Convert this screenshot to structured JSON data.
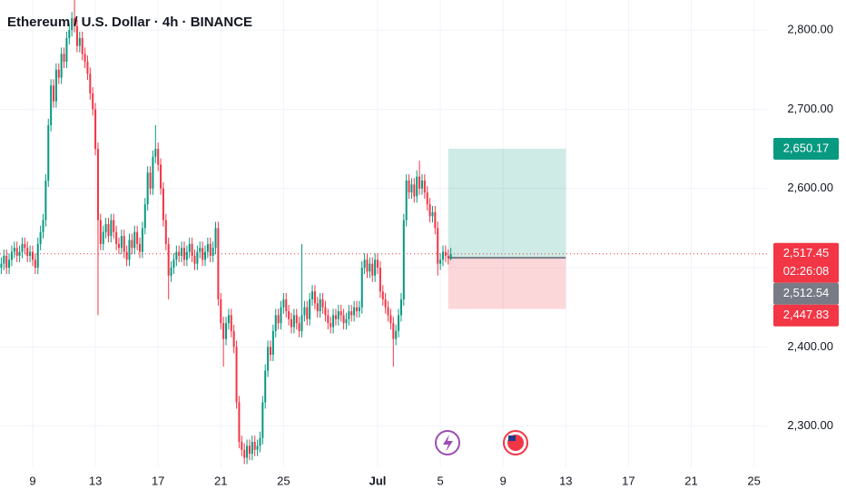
{
  "chart_data": {
    "type": "candlestick",
    "title": "Ethereum / U.S. Dollar · 4h · BINANCE",
    "up_color": "#089981",
    "down_color": "#f23645",
    "grid": true,
    "ylim": [
      2248,
      2838
    ],
    "yticks": [
      {
        "value": 2300,
        "label": "2,300.00"
      },
      {
        "value": 2400,
        "label": "2,400.00"
      },
      {
        "value": 2500,
        "label": "2,500.00"
      },
      {
        "value": 2600,
        "label": "2,600.00"
      },
      {
        "value": 2700,
        "label": "2,700.00"
      },
      {
        "value": 2800,
        "label": "2,800.00"
      }
    ],
    "xlim": [
      -0.5,
      293
    ],
    "xticks": [
      {
        "value": 12,
        "label": "9"
      },
      {
        "value": 36,
        "label": "13"
      },
      {
        "value": 60,
        "label": "17"
      },
      {
        "value": 84,
        "label": "21"
      },
      {
        "value": 108,
        "label": "25"
      },
      {
        "value": 144,
        "label": "Jul"
      },
      {
        "value": 168,
        "label": "5"
      },
      {
        "value": 192,
        "label": "9"
      },
      {
        "value": 216,
        "label": "13"
      },
      {
        "value": 240,
        "label": "17"
      },
      {
        "value": 264,
        "label": "21"
      },
      {
        "value": 288,
        "label": "25"
      }
    ],
    "candles": [
      [
        2500,
        2513,
        2492,
        2505
      ],
      [
        2505,
        2523,
        2497,
        2515
      ],
      [
        2515,
        2523,
        2492,
        2500
      ],
      [
        2500,
        2518,
        2492,
        2510
      ],
      [
        2510,
        2528,
        2502,
        2520
      ],
      [
        2520,
        2533,
        2512,
        2525
      ],
      [
        2525,
        2533,
        2507,
        2515
      ],
      [
        2515,
        2528,
        2507,
        2520
      ],
      [
        2520,
        2538,
        2512,
        2530
      ],
      [
        2530,
        2538,
        2517,
        2525
      ],
      [
        2525,
        2533,
        2507,
        2515
      ],
      [
        2515,
        2528,
        2507,
        2520
      ],
      [
        2520,
        2528,
        2502,
        2510
      ],
      [
        2510,
        2518,
        2492,
        2500
      ],
      [
        2500,
        2538,
        2492,
        2530
      ],
      [
        2530,
        2553,
        2522,
        2545
      ],
      [
        2545,
        2568,
        2537,
        2560
      ],
      [
        2560,
        2618,
        2552,
        2610
      ],
      [
        2610,
        2688,
        2602,
        2680
      ],
      [
        2680,
        2738,
        2672,
        2730
      ],
      [
        2730,
        2738,
        2702,
        2710
      ],
      [
        2710,
        2758,
        2702,
        2750
      ],
      [
        2750,
        2758,
        2732,
        2740
      ],
      [
        2740,
        2778,
        2732,
        2770
      ],
      [
        2770,
        2778,
        2752,
        2760
      ],
      [
        2760,
        2798,
        2752,
        2790
      ],
      [
        2790,
        2808,
        2782,
        2800
      ],
      [
        2800,
        2823,
        2792,
        2815
      ],
      [
        2815,
        2840,
        2797,
        2805
      ],
      [
        2805,
        2813,
        2772,
        2780
      ],
      [
        2780,
        2798,
        2772,
        2790
      ],
      [
        2790,
        2798,
        2762,
        2770
      ],
      [
        2770,
        2778,
        2752,
        2760
      ],
      [
        2760,
        2768,
        2737,
        2745
      ],
      [
        2745,
        2753,
        2712,
        2720
      ],
      [
        2720,
        2728,
        2692,
        2700
      ],
      [
        2700,
        2708,
        2642,
        2650
      ],
      [
        2650,
        2658,
        2440,
        2560
      ],
      [
        2560,
        2568,
        2522,
        2530
      ],
      [
        2530,
        2553,
        2522,
        2545
      ],
      [
        2545,
        2563,
        2537,
        2555
      ],
      [
        2555,
        2563,
        2532,
        2540
      ],
      [
        2540,
        2568,
        2532,
        2560
      ],
      [
        2560,
        2568,
        2537,
        2545
      ],
      [
        2545,
        2553,
        2522,
        2530
      ],
      [
        2530,
        2538,
        2517,
        2525
      ],
      [
        2525,
        2548,
        2517,
        2540
      ],
      [
        2540,
        2548,
        2512,
        2520
      ],
      [
        2520,
        2528,
        2502,
        2510
      ],
      [
        2510,
        2543,
        2502,
        2535
      ],
      [
        2535,
        2543,
        2517,
        2525
      ],
      [
        2525,
        2553,
        2517,
        2545
      ],
      [
        2545,
        2553,
        2522,
        2530
      ],
      [
        2530,
        2538,
        2512,
        2520
      ],
      [
        2520,
        2558,
        2512,
        2550
      ],
      [
        2550,
        2588,
        2542,
        2580
      ],
      [
        2580,
        2628,
        2572,
        2620
      ],
      [
        2620,
        2628,
        2592,
        2600
      ],
      [
        2600,
        2648,
        2592,
        2640
      ],
      [
        2640,
        2680,
        2632,
        2650
      ],
      [
        2650,
        2658,
        2622,
        2630
      ],
      [
        2630,
        2638,
        2592,
        2600
      ],
      [
        2600,
        2608,
        2552,
        2560
      ],
      [
        2560,
        2568,
        2522,
        2530
      ],
      [
        2530,
        2538,
        2460,
        2490
      ],
      [
        2490,
        2508,
        2482,
        2500
      ],
      [
        2500,
        2518,
        2492,
        2510
      ],
      [
        2510,
        2528,
        2502,
        2520
      ],
      [
        2520,
        2528,
        2507,
        2515
      ],
      [
        2515,
        2533,
        2507,
        2525
      ],
      [
        2525,
        2533,
        2502,
        2510
      ],
      [
        2510,
        2528,
        2502,
        2520
      ],
      [
        2520,
        2538,
        2512,
        2530
      ],
      [
        2530,
        2538,
        2507,
        2515
      ],
      [
        2515,
        2523,
        2497,
        2505
      ],
      [
        2505,
        2528,
        2497,
        2520
      ],
      [
        2520,
        2533,
        2512,
        2525
      ],
      [
        2525,
        2533,
        2502,
        2510
      ],
      [
        2510,
        2528,
        2502,
        2520
      ],
      [
        2520,
        2538,
        2512,
        2530
      ],
      [
        2530,
        2538,
        2507,
        2515
      ],
      [
        2515,
        2533,
        2507,
        2525
      ],
      [
        2525,
        2558,
        2517,
        2550
      ],
      [
        2550,
        2558,
        2452,
        2460
      ],
      [
        2460,
        2468,
        2422,
        2430
      ],
      [
        2430,
        2438,
        2375,
        2410
      ],
      [
        2410,
        2438,
        2402,
        2430
      ],
      [
        2430,
        2448,
        2422,
        2440
      ],
      [
        2440,
        2448,
        2412,
        2420
      ],
      [
        2420,
        2428,
        2392,
        2400
      ],
      [
        2400,
        2408,
        2322,
        2330
      ],
      [
        2330,
        2338,
        2272,
        2280
      ],
      [
        2280,
        2288,
        2262,
        2270
      ],
      [
        2270,
        2278,
        2252,
        2260
      ],
      [
        2260,
        2283,
        2252,
        2275
      ],
      [
        2275,
        2283,
        2257,
        2265
      ],
      [
        2265,
        2288,
        2257,
        2280
      ],
      [
        2280,
        2288,
        2262,
        2270
      ],
      [
        2270,
        2283,
        2262,
        2275
      ],
      [
        2275,
        2293,
        2267,
        2285
      ],
      [
        2285,
        2338,
        2277,
        2330
      ],
      [
        2330,
        2378,
        2322,
        2370
      ],
      [
        2370,
        2408,
        2362,
        2400
      ],
      [
        2400,
        2408,
        2382,
        2390
      ],
      [
        2390,
        2428,
        2382,
        2420
      ],
      [
        2420,
        2448,
        2412,
        2440
      ],
      [
        2440,
        2448,
        2422,
        2430
      ],
      [
        2430,
        2458,
        2422,
        2450
      ],
      [
        2450,
        2468,
        2442,
        2460
      ],
      [
        2460,
        2468,
        2437,
        2445
      ],
      [
        2445,
        2453,
        2427,
        2435
      ],
      [
        2435,
        2443,
        2417,
        2425
      ],
      [
        2425,
        2448,
        2417,
        2440
      ],
      [
        2440,
        2448,
        2422,
        2430
      ],
      [
        2430,
        2438,
        2412,
        2420
      ],
      [
        2420,
        2530,
        2412,
        2440
      ],
      [
        2440,
        2458,
        2432,
        2450
      ],
      [
        2450,
        2458,
        2427,
        2435
      ],
      [
        2435,
        2468,
        2427,
        2460
      ],
      [
        2460,
        2478,
        2452,
        2470
      ],
      [
        2470,
        2478,
        2447,
        2455
      ],
      [
        2455,
        2463,
        2437,
        2445
      ],
      [
        2445,
        2468,
        2437,
        2460
      ],
      [
        2460,
        2468,
        2442,
        2450
      ],
      [
        2450,
        2458,
        2432,
        2440
      ],
      [
        2440,
        2448,
        2422,
        2430
      ],
      [
        2430,
        2438,
        2417,
        2425
      ],
      [
        2425,
        2448,
        2417,
        2440
      ],
      [
        2440,
        2448,
        2427,
        2435
      ],
      [
        2435,
        2453,
        2427,
        2445
      ],
      [
        2445,
        2453,
        2432,
        2440
      ],
      [
        2440,
        2448,
        2422,
        2430
      ],
      [
        2430,
        2443,
        2422,
        2435
      ],
      [
        2435,
        2453,
        2427,
        2445
      ],
      [
        2445,
        2453,
        2432,
        2440
      ],
      [
        2440,
        2458,
        2432,
        2450
      ],
      [
        2450,
        2458,
        2437,
        2445
      ],
      [
        2445,
        2458,
        2437,
        2450
      ],
      [
        2450,
        2508,
        2442,
        2500
      ],
      [
        2500,
        2518,
        2492,
        2510
      ],
      [
        2510,
        2518,
        2487,
        2495
      ],
      [
        2495,
        2513,
        2487,
        2505
      ],
      [
        2505,
        2513,
        2482,
        2490
      ],
      [
        2490,
        2518,
        2482,
        2510
      ],
      [
        2510,
        2518,
        2492,
        2500
      ],
      [
        2500,
        2508,
        2462,
        2470
      ],
      [
        2470,
        2478,
        2452,
        2460
      ],
      [
        2460,
        2468,
        2442,
        2450
      ],
      [
        2450,
        2458,
        2432,
        2440
      ],
      [
        2440,
        2448,
        2422,
        2430
      ],
      [
        2430,
        2438,
        2375,
        2410
      ],
      [
        2410,
        2428,
        2402,
        2420
      ],
      [
        2420,
        2448,
        2412,
        2440
      ],
      [
        2440,
        2468,
        2432,
        2460
      ],
      [
        2460,
        2568,
        2452,
        2560
      ],
      [
        2560,
        2618,
        2552,
        2610
      ],
      [
        2610,
        2618,
        2587,
        2595
      ],
      [
        2595,
        2613,
        2587,
        2605
      ],
      [
        2605,
        2613,
        2582,
        2590
      ],
      [
        2590,
        2623,
        2582,
        2615
      ],
      [
        2615,
        2635,
        2592,
        2600
      ],
      [
        2600,
        2618,
        2592,
        2610
      ],
      [
        2610,
        2618,
        2587,
        2595
      ],
      [
        2595,
        2603,
        2572,
        2580
      ],
      [
        2580,
        2588,
        2557,
        2565
      ],
      [
        2565,
        2578,
        2557,
        2570
      ],
      [
        2570,
        2578,
        2542,
        2550
      ],
      [
        2550,
        2558,
        2490,
        2505
      ],
      [
        2505,
        2518,
        2497,
        2510
      ],
      [
        2510,
        2528,
        2502,
        2520
      ],
      [
        2520,
        2528,
        2507,
        2515
      ],
      [
        2515,
        2523,
        2504,
        2512
      ],
      [
        2512,
        2525,
        2509,
        2517.45
      ]
    ],
    "position": {
      "start": 171,
      "end": 216,
      "entry": 2512.54,
      "target": 2650.17,
      "stop": 2447.83,
      "target_color": "#089981",
      "stop_color": "#f23645"
    },
    "current_price": 2517.45,
    "price_labels": [
      {
        "value": 2650.17,
        "label": "2,650.17",
        "color": "#089981"
      },
      {
        "value": 2517.45,
        "label": "2,517.45",
        "color": "#f23645",
        "countdown": "02:26:08"
      },
      {
        "value": 2512.54,
        "label": "2,512.54",
        "color": "#787b86"
      },
      {
        "value": 2447.83,
        "label": "2,447.83",
        "color": "#f23645"
      }
    ]
  }
}
